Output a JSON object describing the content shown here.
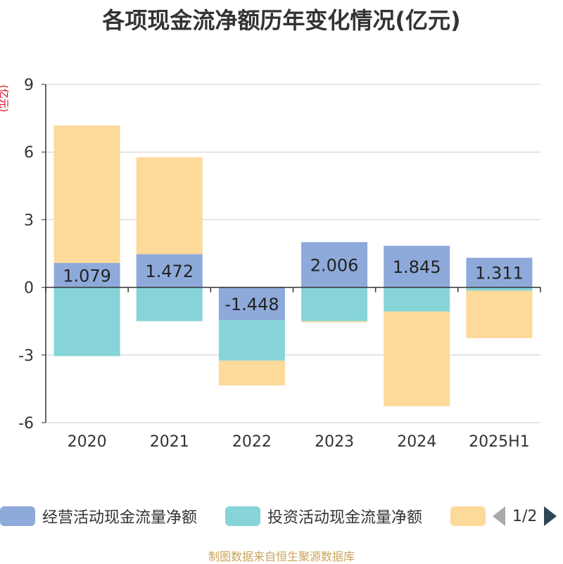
{
  "chart_data": {
    "type": "bar",
    "stacked": true,
    "title": "各项现金流净额历年变化情况(亿元)",
    "unit_label": "(亿元)",
    "categories": [
      "2020",
      "2021",
      "2022",
      "2023",
      "2024",
      "2025H1"
    ],
    "ylim": [
      -6,
      9
    ],
    "yticks": [
      -6,
      -3,
      0,
      3,
      6,
      9
    ],
    "ytick_labels": [
      "-6",
      "-3",
      "0",
      "3",
      "6",
      "9"
    ],
    "grid": true,
    "series": [
      {
        "name": "经营活动现金流量净额",
        "color": "#8eaadb",
        "values": [
          1.079,
          1.472,
          -1.448,
          2.006,
          1.845,
          1.311
        ],
        "labels": [
          "1.079",
          "1.472",
          "-1.448",
          "2.006",
          "1.845",
          "1.311"
        ]
      },
      {
        "name": "投资活动现金流量净额",
        "color": "#86d4d7",
        "values": [
          -3.05,
          -1.5,
          -1.8,
          -1.5,
          -1.07,
          -0.15
        ]
      },
      {
        "name": "",
        "color": "#fdd99a",
        "values": [
          6.1,
          4.3,
          -1.1,
          -0.05,
          -4.2,
          -2.1
        ]
      }
    ],
    "legend_position": "bottom"
  },
  "legend": {
    "items": [
      {
        "label": "经营活动现金流量净额",
        "color": "#8eaadb"
      },
      {
        "label": "投资活动现金流量净额",
        "color": "#86d4d7"
      },
      {
        "label": "",
        "color": "#fdd99a"
      }
    ],
    "page": "1/2"
  },
  "source": "制图数据来自恒生聚源数据库"
}
